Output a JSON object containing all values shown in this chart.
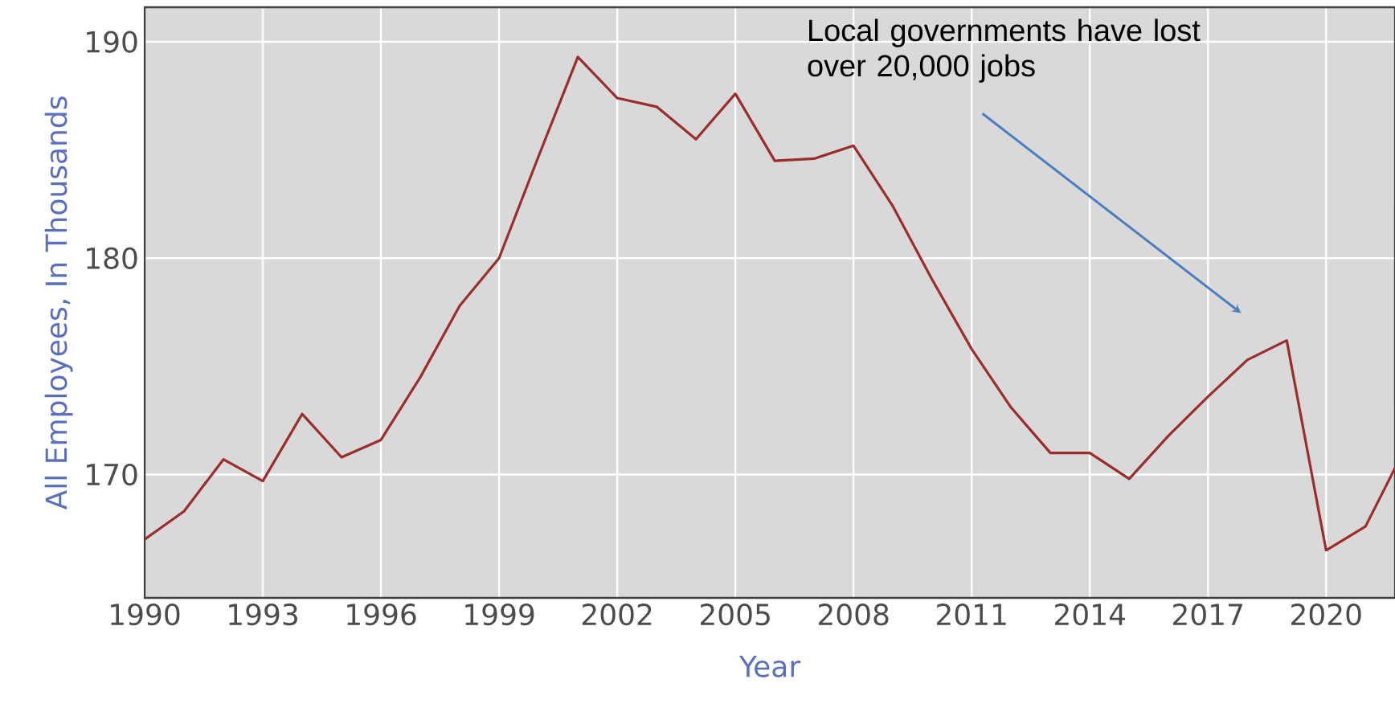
{
  "chart_data": {
    "type": "line",
    "xlabel": "Year",
    "ylabel": "All Employees, In Thousands",
    "x": [
      1990,
      1991,
      1992,
      1993,
      1994,
      1995,
      1996,
      1997,
      1998,
      1999,
      2000,
      2001,
      2002,
      2003,
      2004,
      2005,
      2006,
      2007,
      2008,
      2009,
      2010,
      2011,
      2012,
      2013,
      2014,
      2015,
      2016,
      2017,
      2018,
      2019,
      2020,
      2021,
      2021.75
    ],
    "series": [
      {
        "color": "#9b2d2d",
        "values": [
          167.0,
          168.3,
          170.7,
          169.7,
          172.8,
          170.8,
          171.6,
          174.5,
          177.8,
          180.0,
          184.7,
          189.3,
          187.4,
          187.0,
          185.5,
          187.6,
          184.5,
          184.6,
          185.2,
          182.4,
          179.0,
          175.8,
          173.1,
          171.0,
          171.0,
          169.8,
          171.8,
          173.6,
          175.3,
          176.2,
          166.5,
          167.6,
          170.3
        ]
      }
    ],
    "xlim": [
      1990,
      2021.75
    ],
    "ylim": [
      164.3,
      191.6
    ],
    "xticks": [
      1990,
      1993,
      1996,
      1999,
      2002,
      2005,
      2008,
      2011,
      2014,
      2017,
      2020
    ],
    "yticks": [
      170,
      180,
      190
    ],
    "grid": true,
    "annotations": [
      "Local governments have lost over 20,000 jobs"
    ]
  }
}
